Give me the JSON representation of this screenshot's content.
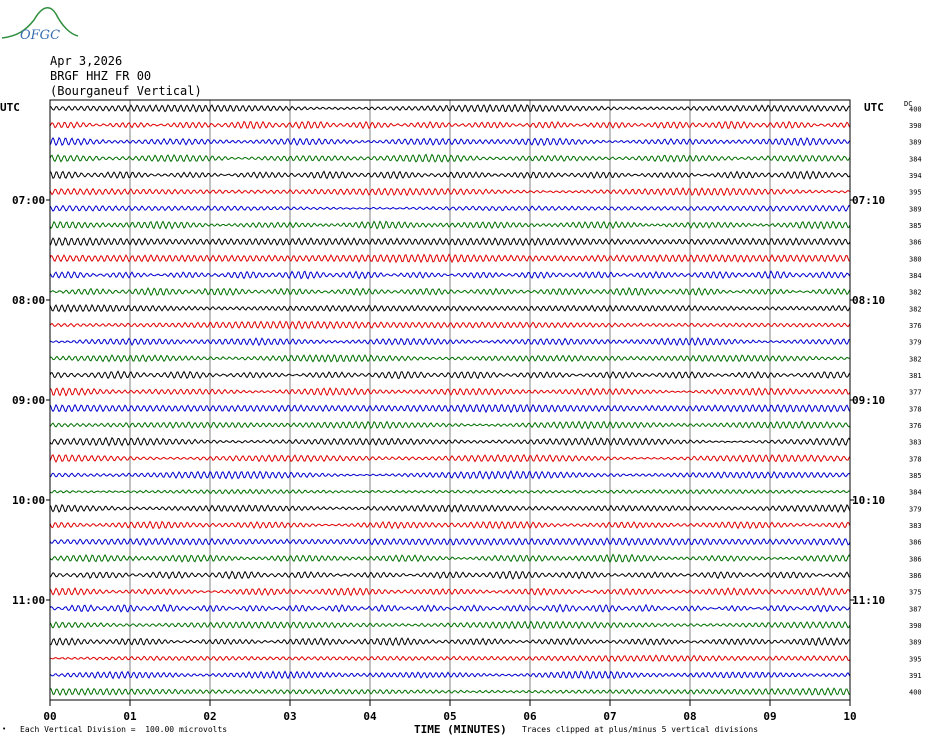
{
  "logo": {
    "text": "OFGC",
    "color": "#3a6fb0",
    "curve_color": "#2f8f3f"
  },
  "header": {
    "date": "Apr 3,2026",
    "station": "BRGF HHZ FR 00",
    "location": "(Bourganeuf Vertical)"
  },
  "labels": {
    "utc_left": "UTC",
    "utc_right": "UTC",
    "dc": "DC",
    "xlabel": "TIME (MINUTES)",
    "footer_left": "Each Vertical Division =  100.00 microvolts",
    "footer_right": "Traces clipped at plus/minus 5 vertical divisions",
    "footer_mark": "•"
  },
  "chart_data": {
    "type": "line",
    "title": "BRGF HHZ FR 00 (Bourganeuf Vertical)",
    "xlabel": "TIME (MINUTES)",
    "xlim": [
      0,
      10
    ],
    "x_ticks": [
      "00",
      "01",
      "02",
      "03",
      "04",
      "05",
      "06",
      "07",
      "08",
      "09",
      "10"
    ],
    "trace_colors": [
      "#000000",
      "#e00000",
      "#0000d0",
      "#007000"
    ],
    "left_time_labels": [
      {
        "row": 6,
        "text": "07:00"
      },
      {
        "row": 12,
        "text": "08:00"
      },
      {
        "row": 18,
        "text": "09:00"
      },
      {
        "row": 24,
        "text": "10:00"
      },
      {
        "row": 30,
        "text": "11:00"
      }
    ],
    "right_time_labels": [
      {
        "row": 6,
        "text": "07:10"
      },
      {
        "row": 12,
        "text": "08:10"
      },
      {
        "row": 18,
        "text": "09:10"
      },
      {
        "row": 24,
        "text": "10:10"
      },
      {
        "row": 30,
        "text": "11:10"
      }
    ],
    "dc_offsets": [
      400,
      390,
      389,
      384,
      394,
      395,
      389,
      385,
      386,
      380,
      384,
      382,
      382,
      376,
      379,
      382,
      381,
      377,
      378,
      376,
      383,
      378,
      385,
      384,
      379,
      383,
      386,
      386,
      386,
      375,
      387,
      390,
      389,
      395,
      391,
      400
    ],
    "microvolts_per_division": 100.0,
    "clip_divisions": 5,
    "grid": true
  }
}
